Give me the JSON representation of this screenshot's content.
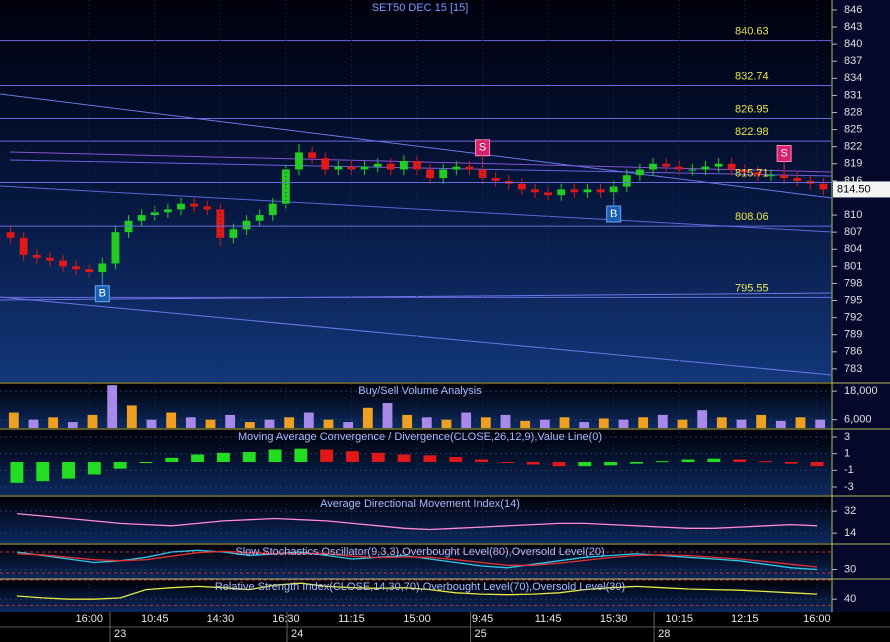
{
  "chart_data": [
    {
      "type": "candlestick",
      "title": "SET50 DEC 15  [15]",
      "open": [
        807,
        806,
        803,
        802.5,
        802,
        801,
        800.5,
        800,
        801.5,
        807,
        809,
        810,
        810.5,
        811,
        812,
        811.5,
        811,
        806,
        807.5,
        809,
        810,
        812,
        818,
        821,
        820,
        818,
        818.5,
        818,
        818.5,
        819,
        818,
        819.5,
        818,
        816.5,
        818,
        818.5,
        818,
        816.5,
        816,
        815.5,
        814.5,
        814,
        813.5,
        814.5,
        814,
        814.5,
        814,
        815,
        817,
        818,
        819,
        818.5,
        818,
        818,
        818.5,
        819,
        818,
        817.5,
        817,
        817,
        816.5,
        816,
        815.5
      ],
      "high": [
        808,
        807,
        804,
        803.5,
        803,
        802,
        801.5,
        802.5,
        808,
        810,
        811,
        811.5,
        812,
        813,
        813,
        812.5,
        812,
        808.5,
        810,
        811,
        813,
        819,
        822.5,
        822,
        821,
        819.5,
        819.5,
        819.5,
        820,
        820,
        820.5,
        820.5,
        819,
        819,
        819.5,
        819.5,
        819,
        817.5,
        817,
        816.5,
        815.5,
        815,
        815.5,
        815.5,
        815.5,
        815.5,
        816,
        818,
        819,
        820,
        820,
        819.5,
        819,
        819.5,
        820,
        820,
        819,
        818.5,
        818,
        818,
        817.5,
        817,
        816.5
      ],
      "low": [
        805,
        802,
        801.5,
        801,
        800,
        799.5,
        799,
        799,
        800.5,
        806,
        808,
        809,
        809.5,
        810,
        810.5,
        810,
        804.5,
        805,
        806.5,
        808,
        809,
        811,
        817,
        819,
        817,
        817,
        817,
        817,
        817.5,
        817,
        817,
        817,
        815.5,
        815.5,
        817,
        817,
        815.5,
        815,
        814.5,
        813.5,
        813,
        812.5,
        812.5,
        813,
        813,
        813,
        813,
        814,
        816,
        817,
        817.5,
        817,
        817,
        817,
        817.5,
        817,
        816.5,
        816,
        816,
        815.5,
        815,
        814.5,
        813.5
      ],
      "close": [
        806,
        803,
        802.5,
        802,
        801,
        800.5,
        800,
        801.5,
        807,
        809,
        810,
        810.5,
        811,
        812,
        811.5,
        811,
        806,
        807.5,
        809,
        810,
        812,
        818,
        821,
        820,
        818,
        818.5,
        818,
        818.5,
        819,
        818,
        819.5,
        818,
        816.5,
        818,
        818.5,
        818,
        816.5,
        816,
        815.5,
        814.5,
        814,
        813.5,
        814.5,
        814,
        814.5,
        814,
        815,
        817,
        818,
        819,
        818.5,
        818,
        818,
        818.5,
        819,
        818,
        817.5,
        817,
        817,
        816.5,
        816,
        815.5,
        814.5
      ],
      "up_color": "#22cc22",
      "down_color": "#e01818",
      "ylim": [
        780.7,
        847.75
      ],
      "yticks": [
        846,
        843,
        840,
        837,
        834,
        831,
        828,
        825,
        822,
        819,
        816,
        810,
        807,
        804,
        801,
        798,
        795,
        792,
        789,
        786,
        783
      ],
      "levels": [
        840.63,
        832.74,
        826.95,
        822.98,
        815.71,
        808.06,
        795.55
      ],
      "last": {
        "value": 814.5,
        "label": "814.50"
      },
      "sell_markers": [
        {
          "label": "S",
          "bar": 36
        },
        {
          "label": "S",
          "bar": 59
        }
      ],
      "buy_markers": [
        {
          "label": "B",
          "bar": 7
        },
        {
          "label": "B",
          "bar": 46
        }
      ],
      "xticks": [
        {
          "value": 6,
          "label": "16:00"
        },
        {
          "value": 11,
          "label": "10:45"
        },
        {
          "value": 16,
          "label": "14:30"
        },
        {
          "value": 21,
          "label": "16:30"
        },
        {
          "value": 26,
          "label": "11:15"
        },
        {
          "value": 31,
          "label": "15:00"
        },
        {
          "value": 36,
          "label": "9:45"
        },
        {
          "value": 41,
          "label": "11:45"
        },
        {
          "value": 46,
          "label": "15:30"
        },
        {
          "value": 51,
          "label": "10:15"
        },
        {
          "value": 56,
          "label": "12:15"
        },
        {
          "value": 61.5,
          "label": "16:00"
        }
      ],
      "date_ticks": [
        {
          "value": 8.5,
          "label": "23"
        },
        {
          "value": 22,
          "label": "24"
        },
        {
          "value": 36,
          "label": "25"
        },
        {
          "value": 50,
          "label": "28"
        }
      ]
    },
    {
      "type": "bar",
      "title": "Buy/Sell Volume Analysis",
      "values": [
        9000,
        6000,
        7000,
        5000,
        8000,
        20500,
        12000,
        6000,
        9000,
        7000,
        6000,
        8000,
        5000,
        6000,
        7000,
        9000,
        6000,
        5000,
        11000,
        13000,
        8000,
        7000,
        6000,
        9000,
        7000,
        8000,
        5500,
        6000,
        7000,
        5000,
        6500,
        6000,
        7000,
        8000,
        6000,
        10000,
        7000,
        6000,
        8000,
        5500,
        7000,
        6000
      ],
      "colors": [
        "#f0a020",
        "#a888e8"
      ],
      "ylim": [
        2500,
        21000
      ],
      "yticks": [
        {
          "value": 18000,
          "label": "18,000"
        },
        {
          "value": 6000,
          "label": "6,000"
        }
      ]
    },
    {
      "type": "bar",
      "title": "Moving Average Convergence / Divergence(CLOSE,26,12,9),Value Line(0)",
      "values": [
        -2.5,
        -2.3,
        -2,
        -1.5,
        -0.8,
        0,
        0.5,
        0.9,
        1.1,
        1.2,
        1.5,
        1.6,
        1.5,
        1.3,
        1.1,
        0.9,
        0.8,
        0.6,
        0.3,
        0,
        -0.3,
        -0.5,
        -0.5,
        -0.4,
        -0.2,
        0.1,
        0.3,
        0.4,
        0.3,
        0.1,
        -0.2,
        -0.5
      ],
      "up_color": "#22dd22",
      "down_color": "#e01818",
      "ylim": [
        -3.96,
        3.84
      ],
      "yticks": [
        3,
        1,
        -1,
        -3
      ]
    },
    {
      "type": "line",
      "title": "Average Directional Movement Index(14)",
      "series": [
        {
          "color": "#ff88dd",
          "values": [
            30,
            28,
            26,
            24,
            22,
            21,
            20,
            22,
            24,
            25,
            26,
            25,
            24,
            22,
            20,
            18,
            17,
            18,
            19,
            20,
            21,
            22,
            22,
            21,
            20,
            19,
            18,
            18,
            19,
            20,
            21,
            20
          ]
        }
      ],
      "ylim": [
        6,
        43.5
      ],
      "yticks": [
        32,
        14
      ]
    },
    {
      "type": "line",
      "title": "Slow Stochastics Oscillator(9,3,3),Overbought Level(80),Oversold Level(20)",
      "series": [
        {
          "color": "#30c8e8",
          "values": [
            80,
            70,
            60,
            50,
            55,
            65,
            80,
            85,
            80,
            70,
            75,
            80,
            70,
            60,
            65,
            70,
            60,
            50,
            40,
            35,
            45,
            55,
            65,
            70,
            75,
            70,
            65,
            60,
            55,
            45,
            35,
            30
          ]
        },
        {
          "color": "#e03030",
          "values": [
            75,
            72,
            65,
            58,
            55,
            58,
            68,
            78,
            82,
            78,
            75,
            76,
            75,
            68,
            64,
            66,
            65,
            58,
            50,
            42,
            42,
            48,
            56,
            64,
            70,
            72,
            70,
            65,
            60,
            53,
            45,
            37
          ]
        }
      ],
      "levels": [
        80,
        20
      ],
      "ylim": [
        0,
        100
      ],
      "yticks": [
        30
      ]
    },
    {
      "type": "line",
      "title": "Relative Strength Index(CLOSE,14,30,70),Overbought Level(70),Oversold Level(30)",
      "series": [
        {
          "color": "#e8e840",
          "values": [
            45,
            42,
            40,
            40,
            42,
            55,
            58,
            60,
            58,
            55,
            62,
            65,
            60,
            58,
            57,
            58,
            55,
            50,
            48,
            47,
            48,
            50,
            55,
            58,
            60,
            58,
            56,
            55,
            54,
            52,
            50,
            48
          ]
        }
      ],
      "levels": [
        70,
        30
      ],
      "ylim": [
        20,
        70
      ],
      "yticks": [
        40
      ]
    }
  ]
}
